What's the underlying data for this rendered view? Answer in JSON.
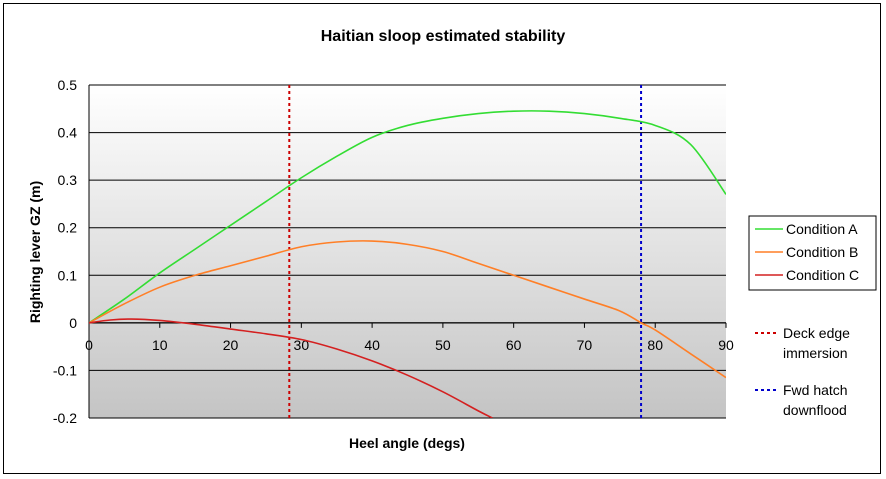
{
  "chart_data": {
    "type": "line",
    "title": "Haitian sloop estimated stability",
    "xlabel": "Heel angle (degs)",
    "ylabel": "Righting lever GZ (m)",
    "xlim": [
      0,
      90
    ],
    "ylim": [
      -0.2,
      0.5
    ],
    "x_ticks": [
      "0",
      "10",
      "20",
      "30",
      "40",
      "50",
      "60",
      "70",
      "80",
      "90"
    ],
    "y_ticks": [
      "-0.2",
      "-0.1",
      "0",
      "0.1",
      "0.2",
      "0.3",
      "0.4",
      "0.5"
    ],
    "grid": "horizontal",
    "legend_position": "right",
    "series": [
      {
        "name": "Condition A",
        "color": "#33dd33",
        "x": [
          0,
          5,
          10,
          15,
          20,
          25,
          30,
          35,
          40,
          45,
          50,
          55,
          60,
          65,
          70,
          75,
          80,
          85,
          90
        ],
        "y": [
          0,
          0.05,
          0.105,
          0.155,
          0.205,
          0.255,
          0.305,
          0.35,
          0.39,
          0.415,
          0.43,
          0.44,
          0.445,
          0.445,
          0.44,
          0.43,
          0.415,
          0.375,
          0.27
        ]
      },
      {
        "name": "Condition B",
        "color": "#ff7f27",
        "x": [
          0,
          5,
          10,
          15,
          20,
          25,
          30,
          35,
          40,
          45,
          50,
          55,
          60,
          65,
          70,
          75,
          78,
          80,
          85,
          90
        ],
        "y": [
          0,
          0.04,
          0.075,
          0.1,
          0.12,
          0.14,
          0.16,
          0.17,
          0.172,
          0.165,
          0.15,
          0.125,
          0.1,
          0.075,
          0.05,
          0.025,
          0.0,
          -0.015,
          -0.065,
          -0.115
        ]
      },
      {
        "name": "Condition C",
        "color": "#d42020",
        "x": [
          0,
          3,
          6,
          10,
          15,
          20,
          25,
          30,
          35,
          40,
          45,
          50,
          55,
          57
        ],
        "y": [
          0,
          0.006,
          0.008,
          0.005,
          -0.003,
          -0.013,
          -0.023,
          -0.035,
          -0.055,
          -0.08,
          -0.11,
          -0.145,
          -0.185,
          -0.2
        ]
      }
    ],
    "reference_lines": [
      {
        "name": "Deck edge immersion",
        "x": 28.3,
        "color": "#cc0000"
      },
      {
        "name": "Fwd hatch downflood",
        "x": 78,
        "color": "#0000cc"
      }
    ],
    "legend_extra": [
      {
        "line1": "Deck edge",
        "line2": "immersion",
        "color": "#cc0000"
      },
      {
        "line1": "Fwd hatch",
        "line2": "downflood",
        "color": "#0000cc"
      }
    ]
  }
}
